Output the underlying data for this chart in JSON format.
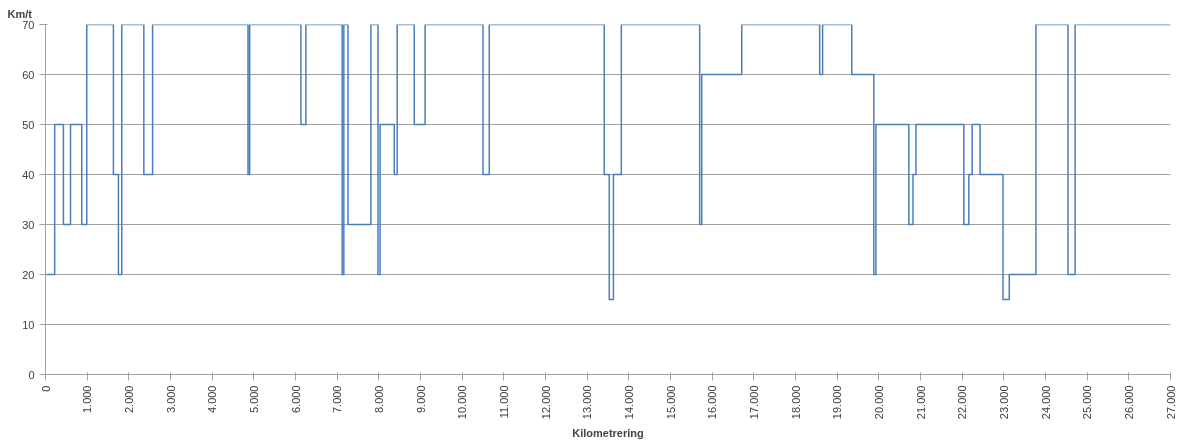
{
  "chart_data": {
    "type": "step",
    "xlabel": "Kilometrering",
    "ylabel": "Km/t",
    "x": [
      0,
      220,
      430,
      600,
      870,
      990,
      1630,
      1750,
      1830,
      2360,
      2570,
      4860,
      4900,
      6130,
      6250,
      7120,
      7160,
      7260,
      7810,
      7980,
      8030,
      8370,
      8440,
      8850,
      9110,
      10500,
      10650,
      13410,
      13530,
      13630,
      13820,
      15700,
      15750,
      16710,
      18580,
      18650,
      19350,
      19880,
      19930,
      20720,
      20820,
      20890,
      22040,
      22160,
      22240,
      22430,
      22980,
      23130,
      23770,
      24540,
      24710,
      27000
    ],
    "series": [
      {
        "color": "#4a7ebb",
        "values": [
          20,
          50,
          30,
          50,
          30,
          70,
          40,
          20,
          70,
          40,
          70,
          40,
          70,
          50,
          70,
          20,
          70,
          30,
          70,
          20,
          50,
          40,
          70,
          50,
          70,
          40,
          70,
          40,
          15,
          40,
          70,
          30,
          60,
          70,
          60,
          70,
          60,
          20,
          50,
          30,
          40,
          50,
          30,
          40,
          50,
          40,
          15,
          20,
          70,
          20,
          70,
          70
        ]
      }
    ],
    "xlim": [
      0,
      27000
    ],
    "xticks": [
      0,
      {
        "value": 1000,
        "label": "1.000"
      },
      {
        "value": 2000,
        "label": "2.000"
      },
      {
        "value": 3000,
        "label": "3.000"
      },
      {
        "value": 4000,
        "label": "4.000"
      },
      {
        "value": 5000,
        "label": "5.000"
      },
      {
        "value": 6000,
        "label": "6.000"
      },
      {
        "value": 7000,
        "label": "7.000"
      },
      {
        "value": 8000,
        "label": "8.000"
      },
      {
        "value": 9000,
        "label": "9.000"
      },
      {
        "value": 10000,
        "label": "10.000"
      },
      {
        "value": 11000,
        "label": "11.000"
      },
      {
        "value": 12000,
        "label": "12.000"
      },
      {
        "value": 13000,
        "label": "13.000"
      },
      {
        "value": 14000,
        "label": "14.000"
      },
      {
        "value": 15000,
        "label": "15.000"
      },
      {
        "value": 16000,
        "label": "16.000"
      },
      {
        "value": 17000,
        "label": "17.000"
      },
      {
        "value": 18000,
        "label": "18.000"
      },
      {
        "value": 19000,
        "label": "19.000"
      },
      {
        "value": 20000,
        "label": "20.000"
      },
      {
        "value": 21000,
        "label": "21.000"
      },
      {
        "value": 22000,
        "label": "22.000"
      },
      {
        "value": 23000,
        "label": "23.000"
      },
      {
        "value": 24000,
        "label": "24.000"
      },
      {
        "value": 25000,
        "label": "25.000"
      },
      {
        "value": 26000,
        "label": "26.000"
      },
      {
        "value": 27000,
        "label": "27.000"
      }
    ],
    "ylim": [
      0,
      70
    ],
    "yticks": [
      0,
      10,
      20,
      30,
      40,
      50,
      60,
      70
    ],
    "grid": "y",
    "line_style": "solid"
  }
}
